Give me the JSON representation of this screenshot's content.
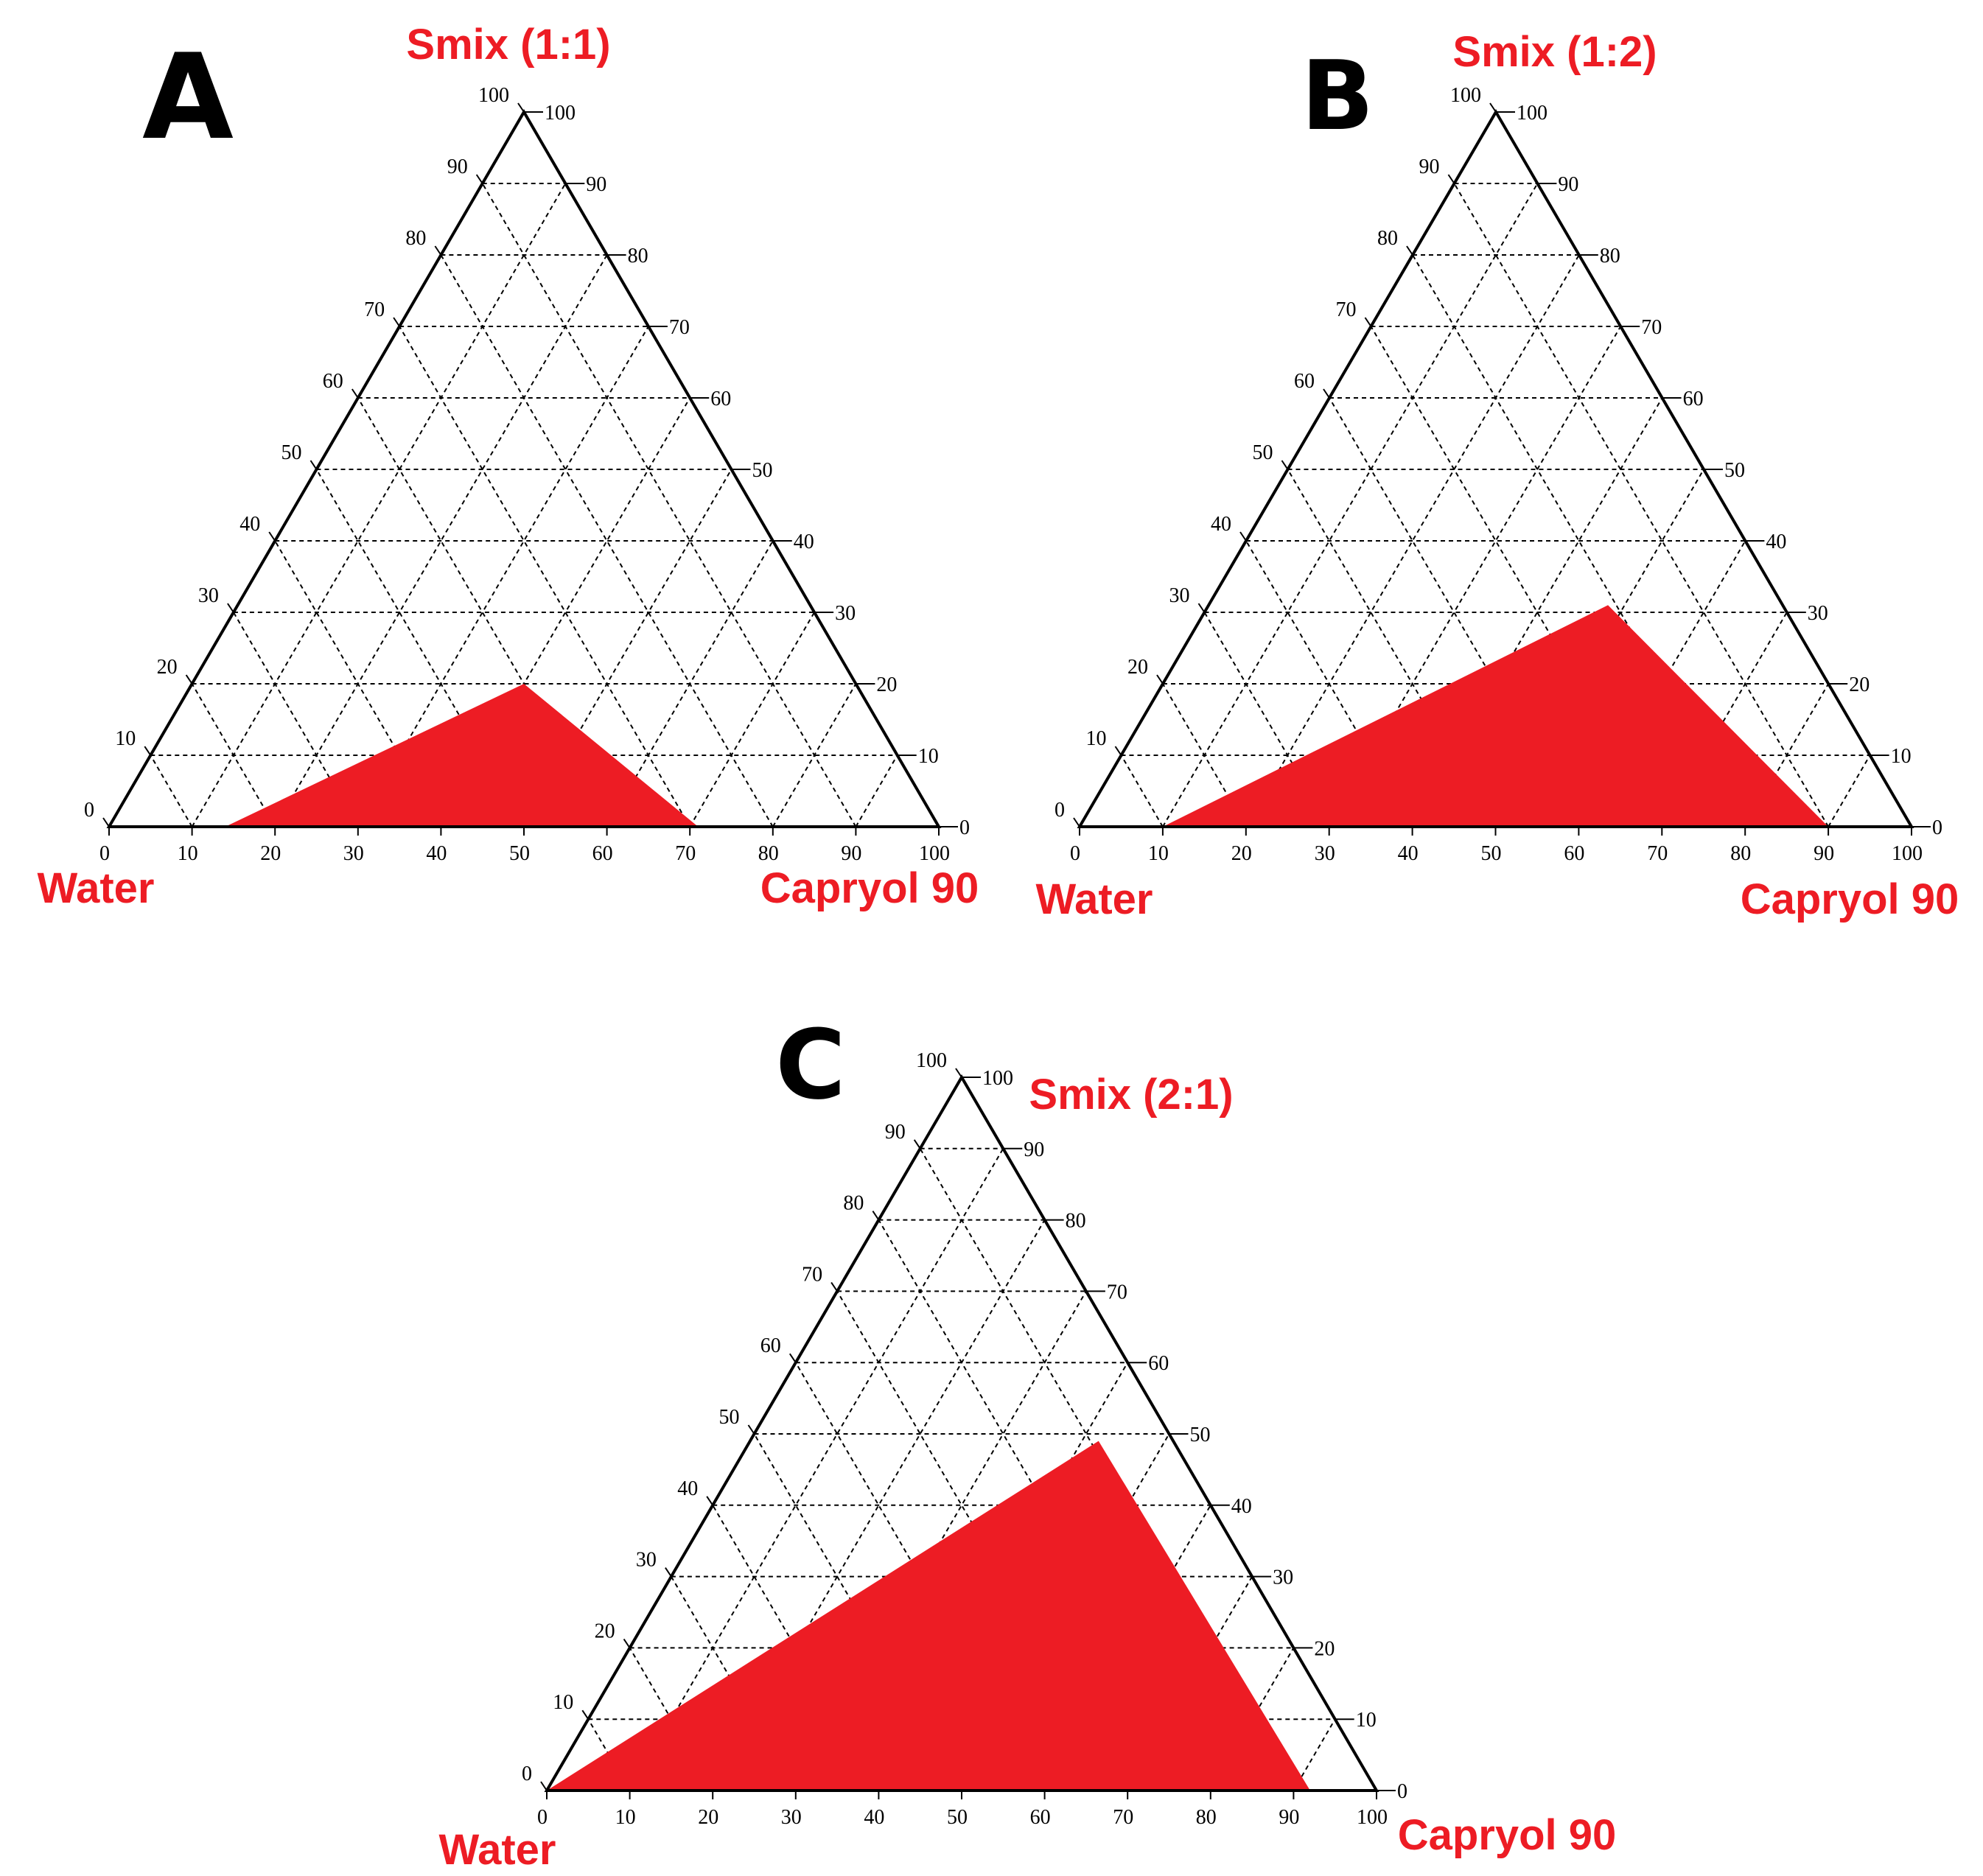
{
  "colors": {
    "region": "#ED1C24",
    "labels": "#ED1C24",
    "axes": "#000000"
  },
  "chart_data": [
    {
      "type": "ternary",
      "panel": "A",
      "top_label": "Smix (1:1)",
      "left_label": "Water",
      "right_label": "Capryol 90",
      "bottom_ticks": [
        "0",
        "10",
        "20",
        "30",
        "40",
        "50",
        "60",
        "70",
        "80",
        "90",
        "100"
      ],
      "left_ticks": [
        "0",
        "10",
        "20",
        "30",
        "40",
        "50",
        "60",
        "70",
        "80",
        "90",
        "100"
      ],
      "right_ticks": [
        "100",
        "90",
        "80",
        "70",
        "60",
        "50",
        "40",
        "30",
        "20",
        "10",
        "0"
      ],
      "grid": true,
      "region_units": "percent: capryol (along bottom axis), smix (along right axis)",
      "region": [
        {
          "capryol": 14,
          "smix": 0
        },
        {
          "capryol": 40,
          "smix": 20
        },
        {
          "capryol": 71,
          "smix": 0
        }
      ]
    },
    {
      "type": "ternary",
      "panel": "B",
      "top_label": "Smix (1:2)",
      "left_label": "Water",
      "right_label": "Capryol 90",
      "bottom_ticks": [
        "0",
        "10",
        "20",
        "30",
        "40",
        "50",
        "60",
        "70",
        "80",
        "90",
        "100"
      ],
      "left_ticks": [
        "0",
        "10",
        "20",
        "30",
        "40",
        "50",
        "60",
        "70",
        "80",
        "90",
        "100"
      ],
      "right_ticks": [
        "100",
        "90",
        "80",
        "70",
        "60",
        "50",
        "40",
        "30",
        "20",
        "10",
        "0"
      ],
      "grid": true,
      "region_units": "percent: capryol (along bottom axis), smix (along right axis)",
      "region": [
        {
          "capryol": 10,
          "smix": 0
        },
        {
          "capryol": 48,
          "smix": 31
        },
        {
          "capryol": 90,
          "smix": 0
        }
      ]
    },
    {
      "type": "ternary",
      "panel": "C",
      "top_label": "Smix (2:1)",
      "left_label": "Water",
      "right_label": "Capryol 90",
      "bottom_ticks": [
        "0",
        "10",
        "20",
        "30",
        "40",
        "50",
        "60",
        "70",
        "80",
        "90",
        "100"
      ],
      "left_ticks": [
        "0",
        "10",
        "20",
        "30",
        "40",
        "50",
        "60",
        "70",
        "80",
        "90",
        "100"
      ],
      "right_ticks": [
        "100",
        "90",
        "80",
        "70",
        "60",
        "50",
        "40",
        "30",
        "20",
        "10",
        "0"
      ],
      "grid": true,
      "region_units": "percent: capryol (along bottom axis), smix (along right axis)",
      "region": [
        {
          "capryol": 0,
          "smix": 0
        },
        {
          "capryol": 42,
          "smix": 49
        },
        {
          "capryol": 92,
          "smix": 0
        }
      ]
    }
  ]
}
